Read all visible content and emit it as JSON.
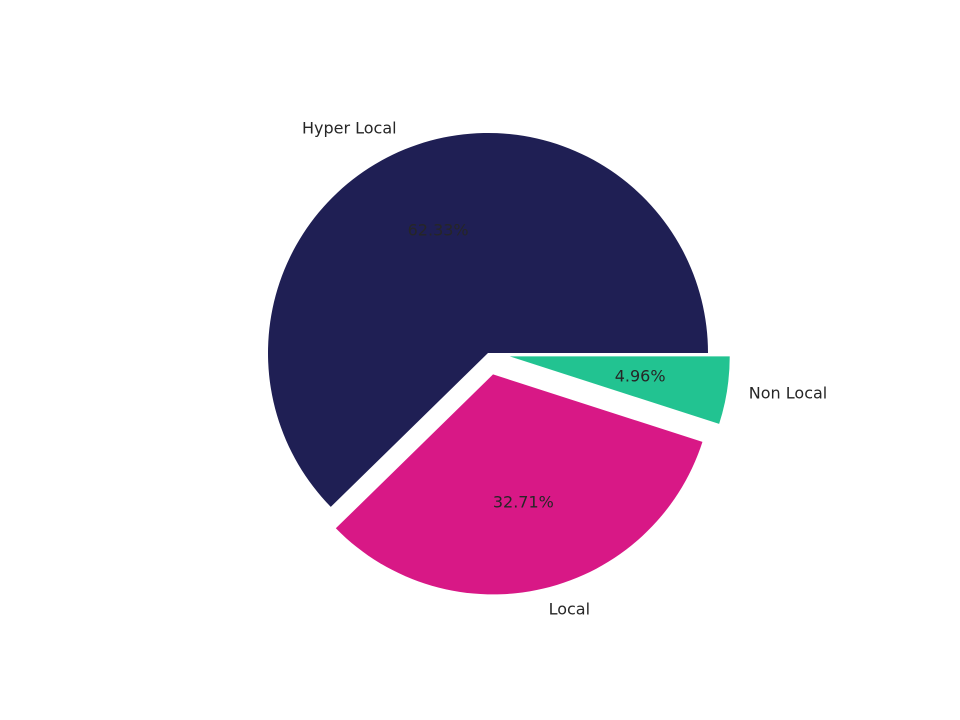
{
  "chart_data": {
    "type": "pie",
    "title": "",
    "slices": [
      {
        "label": "Hyper Local",
        "value": 62.33,
        "pct_text": "62.33%",
        "color": "#1f1f54",
        "exploded": false
      },
      {
        "label": "Local",
        "value": 32.71,
        "pct_text": "32.71%",
        "color": "#d81886",
        "exploded": true
      },
      {
        "label": "Non Local",
        "value": 4.96,
        "pct_text": "4.96%",
        "color": "#22c391",
        "exploded": true
      }
    ],
    "start_angle": "0 deg (3 o'clock)",
    "direction": "counterclockwise"
  }
}
